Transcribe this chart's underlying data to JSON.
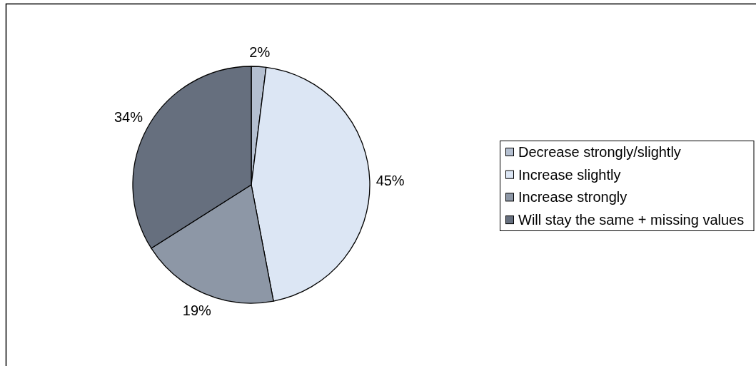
{
  "chart_data": {
    "type": "pie",
    "categories": [
      "Decrease strongly/slightly",
      "Increase slightly",
      "Increase strongly",
      "Will stay the same + missing values"
    ],
    "values": [
      2,
      45,
      19,
      34
    ],
    "colors": [
      "#b4bfd0",
      "#dce6f4",
      "#8d97a6",
      "#666f7e"
    ],
    "value_labels": [
      "2%",
      "45%",
      "19%",
      "34%"
    ],
    "legend": "right"
  }
}
